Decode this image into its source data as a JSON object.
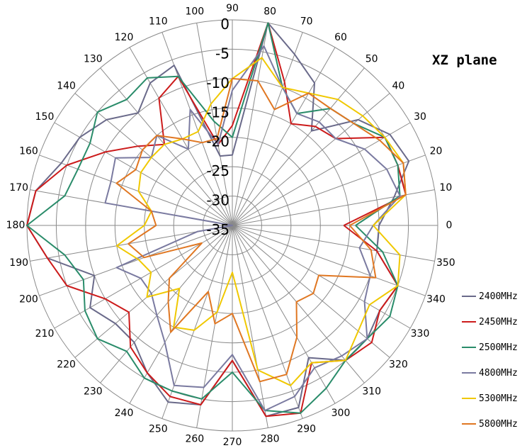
{
  "chart_data": {
    "type": "line",
    "subtype": "polar",
    "title": "XZ plane",
    "angle_unit": "degrees",
    "angle_direction": "counterclockwise",
    "angle_zero": "right",
    "angles": [
      0,
      10,
      20,
      30,
      40,
      50,
      60,
      70,
      80,
      90,
      100,
      110,
      120,
      130,
      140,
      150,
      160,
      170,
      180,
      190,
      200,
      210,
      220,
      230,
      240,
      250,
      260,
      270,
      280,
      290,
      300,
      310,
      320,
      330,
      340,
      350
    ],
    "angle_ticks": [
      "0",
      "10",
      "20",
      "30",
      "40",
      "50",
      "60",
      "70",
      "80",
      "90",
      "100",
      "110",
      "120",
      "130",
      "140",
      "150",
      "160",
      "170",
      "180",
      "190",
      "200",
      "210",
      "220",
      "230",
      "240",
      "250",
      "260",
      "270",
      "280",
      "290",
      "300",
      "310",
      "320",
      "330",
      "340",
      "350"
    ],
    "radial_ticks": [
      "0",
      "-5",
      "-10",
      "-15",
      "-20",
      "-25",
      "-30",
      "-35"
    ],
    "rlim": [
      -35,
      0
    ],
    "grid": true,
    "legend_position": "right",
    "series": [
      {
        "name": "2400MHz",
        "color": "#6a6a8a",
        "values": [
          -10,
          -7,
          -3,
          -4,
          -7,
          -14,
          -7,
          -4,
          0,
          -23,
          -23,
          -6,
          -7,
          -10,
          -7,
          -5,
          -4,
          -1,
          0,
          -3,
          -10,
          -7,
          -9,
          -9,
          -6,
          -3,
          -4,
          -12,
          -2,
          -2,
          -9,
          -5,
          -5,
          -6,
          -5,
          -10
        ]
      },
      {
        "name": "2450MHz",
        "color": "#cc1b1b",
        "values": [
          -16,
          -5,
          -5,
          -5,
          -12,
          -13,
          -15,
          -9,
          0,
          -18,
          -21,
          -8,
          -10,
          -17,
          -14,
          -10,
          -5,
          -1,
          0,
          -3,
          -5,
          -10,
          -12,
          -8,
          -6,
          -4,
          -4,
          -12,
          -2,
          -1,
          -8,
          -5,
          -4,
          -6,
          -5,
          -10
        ]
      },
      {
        "name": "2500MHz",
        "color": "#2a8c6a",
        "values": [
          -14,
          -6,
          -5,
          -5,
          -8,
          -9,
          -13,
          -10,
          0,
          -20,
          -17,
          -8,
          -6,
          -7,
          -5,
          -7,
          -7,
          -6,
          0,
          -6,
          -8,
          -6,
          -5,
          -7,
          -5,
          -5,
          -5,
          -10,
          -3,
          -1,
          -3,
          -5,
          -5,
          -4,
          -5,
          -9
        ]
      },
      {
        "name": "4800MHz",
        "color": "#7a7aa0",
        "values": [
          -11,
          -6,
          -7,
          -9,
          -12,
          -12,
          -13,
          -10,
          -4,
          -12,
          -21,
          -14,
          -20,
          -15,
          -17,
          -12,
          -13,
          -13,
          -35,
          -29,
          -14,
          -17,
          -17,
          -15,
          -12,
          -6,
          -7,
          -13,
          -3,
          -4,
          -7,
          -6,
          -5,
          -9,
          -10,
          -13
        ]
      },
      {
        "name": "5300MHz",
        "color": "#f0c800",
        "values": [
          -11,
          -5,
          -4,
          -5,
          -6,
          -7,
          -9,
          -10,
          -6,
          -10,
          -14,
          -18,
          -18,
          -17,
          -17,
          -17,
          -18,
          -21,
          -20,
          -15,
          -18,
          -19,
          -16,
          -21,
          -15,
          -16,
          -20,
          -27,
          -10,
          -6,
          -8,
          -5,
          -7,
          -8,
          -5,
          -6
        ]
      },
      {
        "name": "5800MHz",
        "color": "#e07722",
        "values": [
          -15,
          -5,
          -4,
          -6,
          -8,
          -9,
          -9,
          -14,
          -10,
          -10,
          -20,
          -20,
          -18,
          -15,
          -15,
          -16,
          -14,
          -21,
          -22,
          -17,
          -19,
          -29,
          -21,
          -18,
          -14,
          -23,
          -18,
          -20,
          -8,
          -8,
          -13,
          -18,
          -17,
          -18,
          -9,
          -11
        ]
      }
    ]
  }
}
